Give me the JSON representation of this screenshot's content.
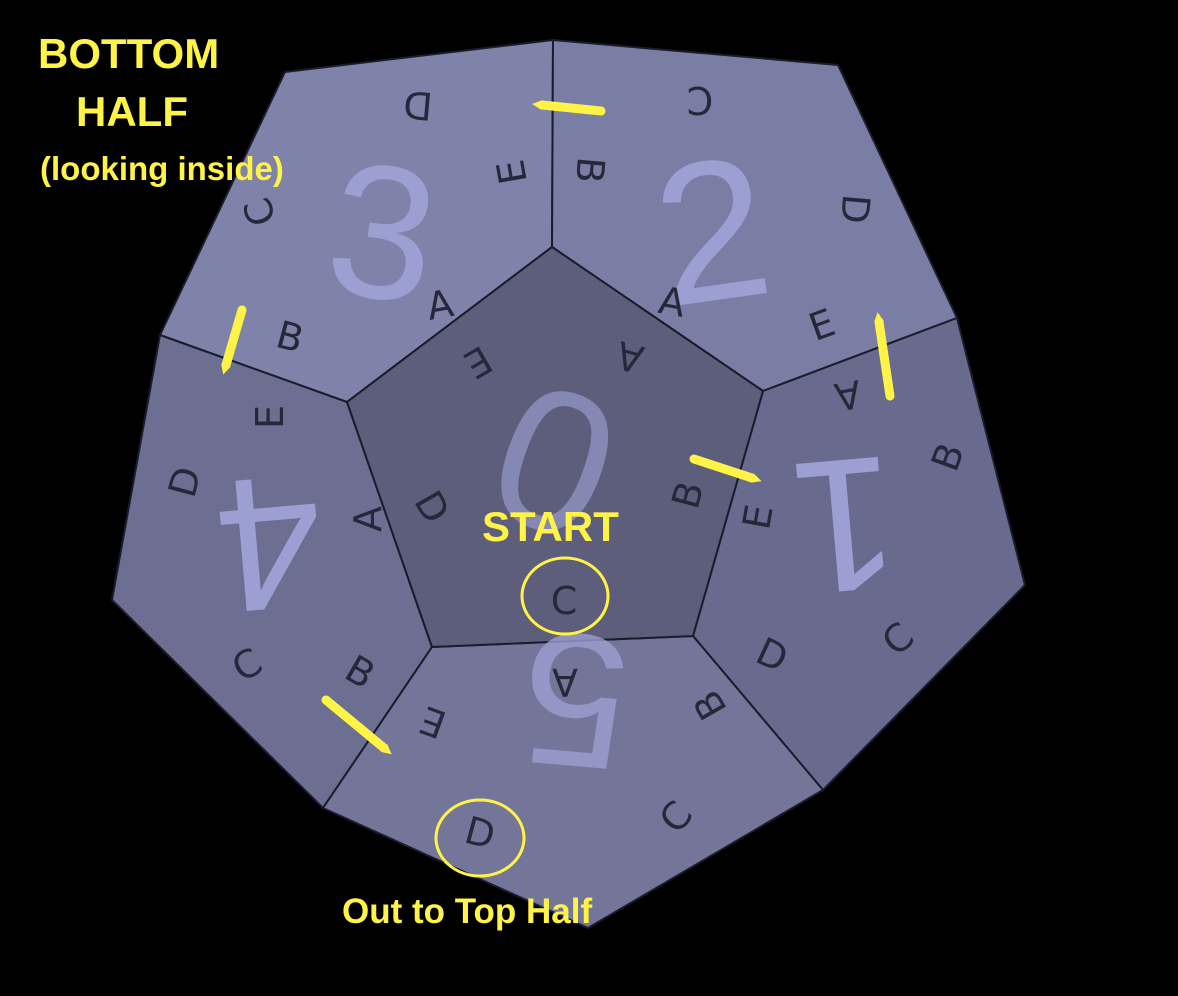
{
  "title": {
    "line1": "BOTTOM",
    "line2": "HALF",
    "subtitle": "(looking inside)"
  },
  "annotations": {
    "start": "START",
    "exit": "Out to Top Half"
  },
  "colors": {
    "background": "#000000",
    "annotation": "#fff347",
    "face_top": "#8083a9",
    "face_side": "#6c6e92",
    "face_center": "#5c5e7b",
    "face_bottom": "#747699",
    "numeral": "#9c9fd2",
    "letter": "#26283a",
    "edge": "#1b1c2b"
  },
  "faces": [
    {
      "id": "center",
      "numeral": "0",
      "letters": [
        "A",
        "B",
        "C",
        "D",
        "E"
      ]
    },
    {
      "id": "upper-right",
      "numeral": "2",
      "letters": [
        "A",
        "B",
        "C",
        "D",
        "E"
      ]
    },
    {
      "id": "upper-left",
      "numeral": "3",
      "letters": [
        "A",
        "B",
        "C",
        "D",
        "E"
      ]
    },
    {
      "id": "right",
      "numeral": "1",
      "letters": [
        "A",
        "B",
        "C",
        "D",
        "E"
      ]
    },
    {
      "id": "left",
      "numeral": "4",
      "letters": [
        "A",
        "B",
        "C",
        "D",
        "E"
      ]
    },
    {
      "id": "bottom",
      "numeral": "5",
      "letters": [
        "A",
        "B",
        "C",
        "D",
        "E"
      ]
    }
  ],
  "path_markers": {
    "start_letter": "C",
    "exit_letter": "D",
    "arrow_count": 5
  }
}
